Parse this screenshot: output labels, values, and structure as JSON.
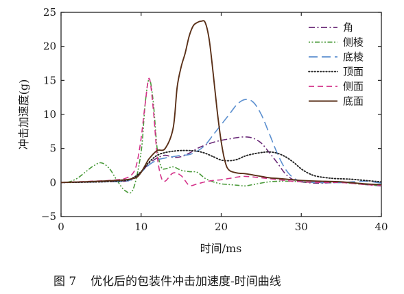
{
  "chart_data": {
    "type": "line",
    "title": "",
    "xlabel": "时间/ms",
    "ylabel": "冲击加速度(g)",
    "xlim": [
      0,
      40
    ],
    "ylim": [
      -5,
      25
    ],
    "x_ticks": [
      "0",
      "10",
      "20",
      "30",
      "40"
    ],
    "y_ticks": [
      "−5",
      "0",
      "5",
      "10",
      "15",
      "20",
      "25"
    ],
    "grid": false,
    "legend_position": "top-right",
    "series": [
      {
        "name": "角",
        "color": "#6a2a78",
        "dash": "dashdot",
        "x": [
          0,
          5,
          8,
          9,
          10,
          11,
          12,
          13,
          14,
          15,
          16,
          17,
          18,
          19,
          20,
          21,
          22,
          23,
          24,
          25,
          26,
          27,
          28,
          29,
          30,
          32,
          35,
          38,
          40
        ],
        "y": [
          0,
          0.1,
          0.2,
          0.5,
          1.5,
          2.8,
          3.6,
          4.0,
          3.7,
          3.8,
          4.3,
          5.0,
          5.5,
          5.9,
          6.2,
          6.4,
          6.6,
          6.7,
          6.5,
          5.8,
          4.4,
          2.9,
          1.3,
          0.4,
          0.1,
          -0.1,
          0,
          -0.3,
          -0.5
        ]
      },
      {
        "name": "侧棱",
        "color": "#4a9a3a",
        "dash": "dotdot",
        "x": [
          0,
          1,
          2,
          3,
          4,
          5,
          6,
          7,
          8,
          9,
          10,
          10.5,
          11,
          11.5,
          12,
          12.5,
          13,
          14,
          15,
          16,
          17,
          18,
          19,
          20,
          21,
          22,
          23,
          24,
          26,
          28,
          30,
          32,
          35,
          38,
          40
        ],
        "y": [
          0,
          0.1,
          0.6,
          1.5,
          2.4,
          2.9,
          2.1,
          0.3,
          -1.2,
          -1.0,
          4.5,
          11.5,
          15.2,
          12.0,
          5.0,
          2.3,
          2.0,
          2.3,
          1.8,
          1.6,
          1.5,
          0.6,
          0.1,
          -0.2,
          -0.3,
          -0.4,
          -0.5,
          -0.3,
          0.1,
          0.2,
          0.1,
          0,
          0,
          -0.3,
          -0.4
        ]
      },
      {
        "name": "底棱",
        "color": "#5b8fcf",
        "dash": "longdash",
        "x": [
          0,
          5,
          8,
          9,
          10,
          11,
          12,
          13,
          14,
          15,
          16,
          17,
          18,
          19,
          20,
          21,
          22,
          23,
          24,
          25,
          26,
          27,
          28,
          29,
          30,
          32,
          35,
          38,
          40
        ],
        "y": [
          0,
          0.1,
          0.2,
          0.6,
          1.5,
          2.6,
          3.3,
          3.6,
          3.8,
          4.0,
          4.1,
          4.6,
          5.5,
          7.0,
          8.5,
          10.0,
          11.5,
          12.2,
          11.8,
          10.0,
          7.2,
          4.3,
          2.0,
          0.7,
          0.2,
          0,
          0,
          0.2,
          -0.1
        ]
      },
      {
        "name": "顶面",
        "color": "#222222",
        "dash": "dotted",
        "x": [
          0,
          5,
          8,
          9,
          10,
          11,
          12,
          13,
          14,
          15,
          16,
          17,
          18,
          19,
          20,
          21,
          22,
          23,
          24,
          25,
          26,
          27,
          28,
          29,
          30,
          31,
          32,
          34,
          36,
          38,
          40
        ],
        "y": [
          0,
          0.1,
          0.3,
          0.7,
          1.6,
          3.0,
          4.0,
          4.4,
          4.6,
          4.7,
          4.7,
          4.6,
          4.3,
          3.8,
          3.3,
          3.2,
          3.4,
          3.9,
          4.2,
          4.4,
          4.5,
          4.3,
          3.8,
          3.0,
          2.0,
          1.3,
          0.9,
          0.6,
          0.5,
          0.3,
          0.1
        ]
      },
      {
        "name": "侧面",
        "color": "#d4338a",
        "dash": "dashed",
        "x": [
          0,
          2,
          4,
          6,
          8,
          9,
          9.5,
          10,
          10.5,
          11,
          11.5,
          12,
          12.5,
          13,
          14,
          15,
          16,
          17,
          18,
          19,
          20,
          21,
          22,
          23,
          25,
          28,
          30,
          33,
          35,
          38,
          40
        ],
        "y": [
          0,
          0.1,
          0.2,
          0.3,
          0.6,
          1.4,
          3.0,
          6.5,
          11.5,
          15.3,
          11.0,
          4.0,
          0.8,
          0.2,
          1.4,
          1.0,
          -0.4,
          -0.2,
          0.1,
          0.3,
          0.4,
          0.6,
          0.8,
          0.9,
          0.7,
          0.3,
          0.1,
          0,
          0,
          -0.3,
          -0.4
        ]
      },
      {
        "name": "底面",
        "color": "#5a3018",
        "dash": "solid",
        "x": [
          0,
          5,
          8,
          9,
          9.5,
          10,
          10.5,
          11,
          12,
          13,
          14,
          14.5,
          15,
          15.5,
          16,
          16.5,
          17,
          17.5,
          18,
          18.5,
          19,
          19.5,
          20,
          20.5,
          21,
          22,
          23,
          24,
          25,
          26,
          27,
          28,
          29,
          30,
          32,
          35,
          38,
          40
        ],
        "y": [
          0,
          0.2,
          0.4,
          0.6,
          0.8,
          1.5,
          2.5,
          3.5,
          4.7,
          5.0,
          8.0,
          14.0,
          17.0,
          19.0,
          21.5,
          23.0,
          23.5,
          23.7,
          23.5,
          21.0,
          16.0,
          10.5,
          6.0,
          3.0,
          1.8,
          1.4,
          1.3,
          1.1,
          0.9,
          0.7,
          0.6,
          0.5,
          0.4,
          0.3,
          0.2,
          0.1,
          -0.2,
          -0.3
        ]
      }
    ]
  },
  "caption": {
    "number": "图 7",
    "text": "优化后的包装件冲击加速度-时间曲线"
  }
}
